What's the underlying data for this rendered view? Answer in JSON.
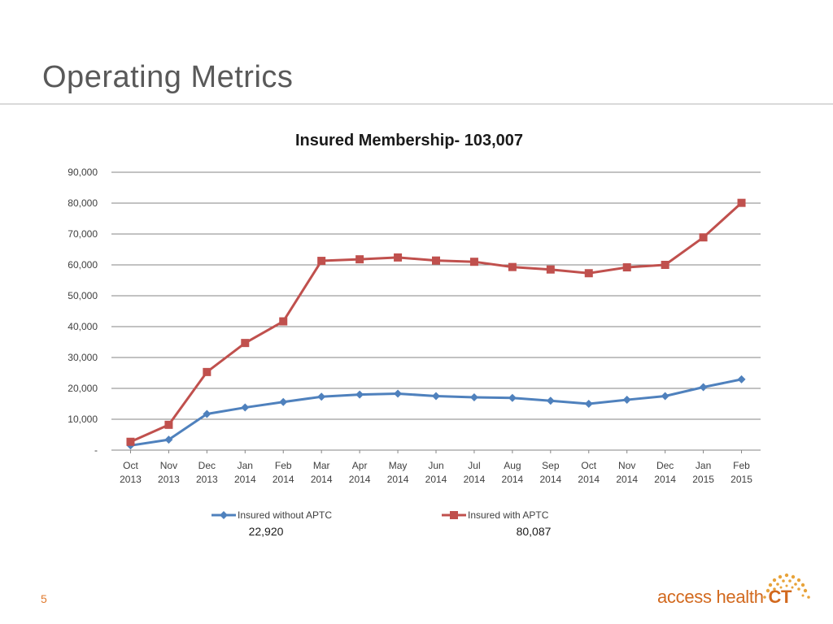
{
  "page": {
    "title": "Operating Metrics",
    "page_number": "5",
    "logo": {
      "text_main": "access health ",
      "text_ct": "CT"
    }
  },
  "colors": {
    "series_without": "#4f81bd",
    "series_with": "#c0504d",
    "grid": "#868686",
    "logo": "#d2691e"
  },
  "chart_data": {
    "type": "line",
    "title": "Insured Membership- 103,007",
    "categories": [
      [
        "Oct",
        "2013"
      ],
      [
        "Nov",
        "2013"
      ],
      [
        "Dec",
        "2013"
      ],
      [
        "Jan",
        "2014"
      ],
      [
        "Feb",
        "2014"
      ],
      [
        "Mar",
        "2014"
      ],
      [
        "Apr",
        "2014"
      ],
      [
        "May",
        "2014"
      ],
      [
        "Jun",
        "2014"
      ],
      [
        "Jul",
        "2014"
      ],
      [
        "Aug",
        "2014"
      ],
      [
        "Sep",
        "2014"
      ],
      [
        "Oct",
        "2014"
      ],
      [
        "Nov",
        "2014"
      ],
      [
        "Dec",
        "2014"
      ],
      [
        "Jan",
        "2015"
      ],
      [
        "Feb",
        "2015"
      ]
    ],
    "yticks": [
      0,
      10000,
      20000,
      30000,
      40000,
      50000,
      60000,
      70000,
      80000,
      90000
    ],
    "ytick_labels": [
      "-",
      "10,000",
      "20,000",
      "30,000",
      "40,000",
      "50,000",
      "60,000",
      "70,000",
      "80,000",
      "90,000"
    ],
    "ylim": [
      0,
      90000
    ],
    "series": [
      {
        "name": "Insured without APTC",
        "marker": "diamond",
        "total": "22,920",
        "values": [
          1500,
          3400,
          11700,
          13800,
          15600,
          17300,
          18000,
          18300,
          17500,
          17100,
          16900,
          16000,
          15000,
          16300,
          17500,
          20400,
          22920
        ]
      },
      {
        "name": "Insured with APTC",
        "marker": "square",
        "total": "80,087",
        "values": [
          2700,
          8200,
          25300,
          34700,
          41700,
          61300,
          61800,
          62400,
          61400,
          61000,
          59300,
          58500,
          57300,
          59200,
          60000,
          68900,
          80087
        ]
      }
    ]
  }
}
